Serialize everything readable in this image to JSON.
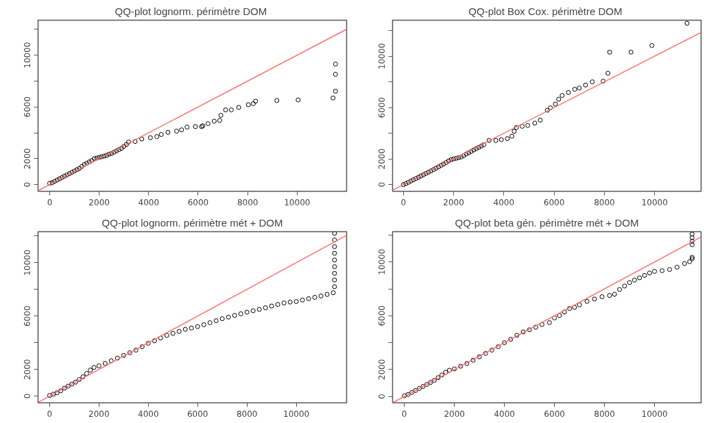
{
  "chart_data": [
    {
      "type": "scatter",
      "title": "QQ-plot lognorm. périmètre  DOM",
      "xlim": [
        -470,
        12000
      ],
      "ylim": [
        -520,
        12700
      ],
      "xticks": [
        0,
        2000,
        4000,
        6000,
        8000,
        10000
      ],
      "yticks": [
        0,
        2000,
        {
          "value": 4000,
          "label": null
        },
        6000,
        {
          "value": 8000,
          "label": null
        },
        10000,
        {
          "value": 12000,
          "label": null
        }
      ],
      "grid": false,
      "series": [
        {
          "marker": "circle",
          "color": "#000000",
          "x": [
            0,
            100,
            200,
            300,
            400,
            500,
            600,
            700,
            800,
            900,
            1000,
            1100,
            1200,
            1300,
            1400,
            1500,
            1600,
            1700,
            1800,
            1900,
            2000,
            2100,
            2200,
            2300,
            2400,
            2500,
            2600,
            2700,
            2800,
            2900,
            3000,
            3100,
            3190,
            3450,
            3720,
            4070,
            4330,
            4510,
            4780,
            5130,
            5330,
            5550,
            5890,
            6140,
            6190,
            6400,
            6650,
            6870,
            6920,
            7110,
            7340,
            7640,
            8030,
            8230,
            8320,
            9180,
            10040,
            11450,
            11550,
            11550,
            11550
          ],
          "values": [
            100,
            150,
            250,
            350,
            450,
            550,
            650,
            750,
            850,
            950,
            1050,
            1150,
            1250,
            1400,
            1550,
            1650,
            1750,
            1850,
            2000,
            2050,
            2100,
            2150,
            2200,
            2250,
            2350,
            2400,
            2500,
            2600,
            2700,
            2800,
            2950,
            3100,
            3290,
            3330,
            3520,
            3620,
            3710,
            3870,
            4040,
            4130,
            4230,
            4440,
            4480,
            4480,
            4540,
            4710,
            4900,
            4960,
            5350,
            5770,
            5770,
            5960,
            6170,
            6250,
            6440,
            6500,
            6540,
            6690,
            7210,
            8520,
            9310
          ]
        },
        {
          "type": "line",
          "marker": "none",
          "color": "#ff7070",
          "x": [
            -470,
            12000
          ],
          "values": [
            -470,
            12000
          ]
        }
      ]
    },
    {
      "type": "scatter",
      "title": "QQ-plot Box Cox. périmètre  DOM",
      "xlim": [
        -430,
        11850
      ],
      "ylim": [
        -520,
        12800
      ],
      "xticks": [
        0,
        2000,
        4000,
        6000,
        8000,
        10000
      ],
      "yticks": [
        0,
        2000,
        {
          "value": 4000,
          "label": null
        },
        6000,
        {
          "value": 8000,
          "label": null
        },
        10000,
        {
          "value": 12000,
          "label": null
        }
      ],
      "grid": false,
      "series": [
        {
          "marker": "circle",
          "color": "#000000",
          "x": [
            0,
            100,
            200,
            300,
            400,
            500,
            600,
            700,
            800,
            900,
            1000,
            1100,
            1200,
            1300,
            1400,
            1500,
            1600,
            1700,
            1800,
            1900,
            2000,
            2100,
            2200,
            2300,
            2400,
            2500,
            2600,
            2700,
            2800,
            2900,
            3000,
            3100,
            3200,
            3410,
            3680,
            3900,
            4140,
            4320,
            4410,
            4500,
            4730,
            4950,
            5230,
            5450,
            5730,
            5850,
            6050,
            6180,
            6320,
            6570,
            6820,
            7000,
            7250,
            7520,
            7950,
            8140,
            8210,
            9060,
            9890,
            11290
          ],
          "values": [
            0,
            80,
            180,
            280,
            380,
            480,
            570,
            670,
            770,
            870,
            970,
            1070,
            1170,
            1280,
            1380,
            1500,
            1600,
            1720,
            1850,
            1950,
            2000,
            2050,
            2100,
            2150,
            2250,
            2380,
            2480,
            2580,
            2700,
            2800,
            2900,
            3000,
            3100,
            3440,
            3440,
            3500,
            3580,
            3770,
            4150,
            4440,
            4540,
            4600,
            4790,
            5020,
            5790,
            5980,
            6270,
            6650,
            6940,
            7170,
            7420,
            7520,
            7750,
            8000,
            8060,
            8670,
            10310,
            10310,
            10830,
            12560
          ]
        },
        {
          "type": "line",
          "marker": "none",
          "color": "#ff7070",
          "x": [
            -430,
            11850
          ],
          "values": [
            -430,
            11850
          ]
        }
      ]
    },
    {
      "type": "scatter",
      "title": "QQ-plot lognorm. périmètre mét + DOM",
      "xlim": [
        -470,
        12040
      ],
      "ylim": [
        -500,
        12320
      ],
      "xticks": [
        0,
        2000,
        4000,
        6000,
        8000,
        10000
      ],
      "yticks": [
        0,
        2000,
        {
          "value": 4000,
          "label": null
        },
        6000,
        {
          "value": 8000,
          "label": null
        },
        10000,
        {
          "value": 12000,
          "label": null
        }
      ],
      "grid": false,
      "series": [
        {
          "marker": "circle",
          "color": "#000000",
          "x": [
            0,
            150,
            300,
            450,
            600,
            750,
            900,
            1050,
            1200,
            1350,
            1500,
            1650,
            1800,
            2000,
            2250,
            2500,
            2750,
            3000,
            3250,
            3500,
            3750,
            4000,
            4250,
            4500,
            4750,
            5000,
            5250,
            5500,
            5750,
            6000,
            6250,
            6500,
            6750,
            7000,
            7250,
            7500,
            7750,
            8000,
            8250,
            8500,
            8750,
            9000,
            9250,
            9500,
            9750,
            10000,
            10250,
            10500,
            10750,
            11000,
            11250,
            11500,
            11550,
            11550,
            11550,
            11550,
            11550,
            11550,
            11550,
            11550,
            11550
          ],
          "values": [
            50,
            150,
            250,
            400,
            600,
            750,
            900,
            1050,
            1250,
            1450,
            1700,
            1950,
            2150,
            2270,
            2450,
            2650,
            2850,
            3050,
            3250,
            3450,
            3700,
            3960,
            4150,
            4350,
            4550,
            4700,
            4850,
            5000,
            5100,
            5210,
            5350,
            5500,
            5650,
            5800,
            5920,
            6050,
            6170,
            6290,
            6400,
            6500,
            6620,
            6750,
            6870,
            6980,
            7050,
            7090,
            7200,
            7300,
            7400,
            7500,
            7620,
            7750,
            8200,
            8700,
            9200,
            9700,
            10200,
            10700,
            11200,
            11700,
            12200
          ]
        },
        {
          "type": "line",
          "marker": "none",
          "color": "#ff7070",
          "x": [
            -470,
            12040
          ],
          "values": [
            -470,
            12040
          ]
        }
      ]
    },
    {
      "type": "scatter",
      "title": "QQ-plot beta gén. périmètre mét + DOM",
      "xlim": [
        -470,
        11860
      ],
      "ylim": [
        -470,
        12250
      ],
      "xticks": [
        0,
        2000,
        4000,
        6000,
        8000,
        10000
      ],
      "yticks": [
        0,
        2000,
        {
          "value": 4000,
          "label": null
        },
        6000,
        {
          "value": 8000,
          "label": null
        },
        10000,
        {
          "value": 12000,
          "label": null
        }
      ],
      "grid": false,
      "series": [
        {
          "marker": "circle",
          "color": "#000000",
          "x": [
            0,
            150,
            300,
            450,
            600,
            750,
            900,
            1050,
            1200,
            1350,
            1500,
            1650,
            1800,
            2000,
            2250,
            2500,
            2750,
            3000,
            3250,
            3500,
            3750,
            4000,
            4250,
            4500,
            4750,
            5000,
            5250,
            5500,
            5800,
            6000,
            6200,
            6400,
            6600,
            6800,
            7000,
            7300,
            7600,
            7900,
            8200,
            8400,
            8600,
            8800,
            9000,
            9200,
            9400,
            9600,
            9800,
            10000,
            10300,
            10600,
            10900,
            11200,
            11400,
            11500,
            11500,
            11500,
            11500,
            11500,
            11500
          ],
          "values": [
            50,
            150,
            300,
            450,
            600,
            750,
            900,
            1050,
            1200,
            1400,
            1600,
            1800,
            1950,
            2050,
            2250,
            2450,
            2700,
            2950,
            3200,
            3450,
            3700,
            4000,
            4250,
            4550,
            4800,
            4960,
            5150,
            5350,
            5490,
            5840,
            6020,
            6280,
            6540,
            6630,
            6810,
            7070,
            7250,
            7420,
            7510,
            7600,
            7950,
            8210,
            8470,
            8650,
            8820,
            9000,
            9180,
            9300,
            9350,
            9440,
            9610,
            9880,
            10020,
            10230,
            10350,
            11280,
            11540,
            11810,
            12070
          ]
        },
        {
          "type": "line",
          "marker": "none",
          "color": "#ff7070",
          "x": [
            -470,
            11860
          ],
          "values": [
            -470,
            11860
          ]
        }
      ]
    }
  ]
}
